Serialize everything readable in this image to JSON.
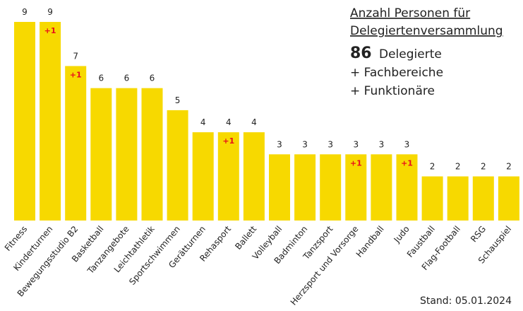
{
  "chart_data": {
    "type": "bar",
    "title_lines": [
      "Anzahl Personen für",
      "Delegiertenversammlung"
    ],
    "headline_number": 86,
    "headline_text": "Delegierte",
    "extra_lines": [
      "+ Fachbereiche",
      "+ Funktionäre"
    ],
    "footnote": "Stand: 05.01.2024",
    "categories": [
      "Fitness",
      "Kinderturnen",
      "Bewegungsstudio B2",
      "Basketball",
      "Tanzangebote",
      "Leichtathletik",
      "Sportschwimmen",
      "Gerätturnen",
      "Rehasport",
      "Ballett",
      "Volleyball",
      "Badminton",
      "Tanzsport",
      "Herzsport und Vorsorge",
      "Handball",
      "Judo",
      "Faustball",
      "Flag-Football",
      "RSG",
      "Schauspiel"
    ],
    "values": [
      9,
      9,
      7,
      6,
      6,
      6,
      5,
      4,
      4,
      4,
      3,
      3,
      3,
      3,
      3,
      3,
      2,
      2,
      2,
      2
    ],
    "bar_notes": [
      null,
      "+1",
      "+1",
      null,
      null,
      null,
      null,
      null,
      "+1",
      null,
      null,
      null,
      null,
      "+1",
      null,
      "+1",
      null,
      null,
      null,
      null
    ],
    "color": "#f7d900",
    "note_color": "#e8101a",
    "ylim": [
      0,
      9
    ]
  }
}
